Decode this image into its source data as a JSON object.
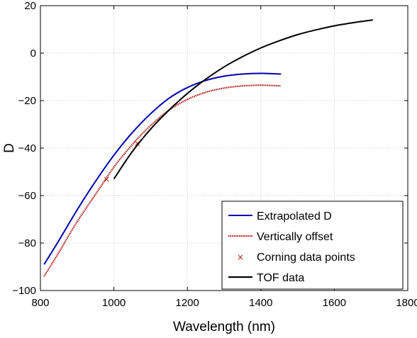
{
  "chart_data": {
    "type": "line",
    "title": "",
    "xlabel": "Wavelength (nm)",
    "ylabel": "D",
    "xlim": [
      800,
      1800
    ],
    "ylim": [
      -100,
      20
    ],
    "xticks": [
      800,
      1000,
      1200,
      1400,
      1600,
      1800
    ],
    "yticks": [
      -100,
      -80,
      -60,
      -40,
      -20,
      0,
      20
    ],
    "xtick_labels": [
      "800",
      "1000",
      "1200",
      "1400",
      "1600",
      "1800"
    ],
    "ytick_labels": [
      "−100",
      "−80",
      "−60",
      "−40",
      "−20",
      "0",
      "20"
    ],
    "grid": true,
    "legend_position": "bottom-right",
    "series": [
      {
        "name": "Extrapolated D",
        "style": "line",
        "color": "#0000b0",
        "x": [
          810,
          850,
          900,
          950,
          1000,
          1050,
          1100,
          1150,
          1200,
          1250,
          1300,
          1350,
          1400,
          1455
        ],
        "y": [
          -89,
          -79,
          -66,
          -54,
          -43,
          -33.5,
          -25.5,
          -19,
          -14.5,
          -11.5,
          -9.7,
          -8.8,
          -8.5,
          -8.8
        ]
      },
      {
        "name": "Vertically offset",
        "style": "dotted",
        "color": "#b01818",
        "x": [
          810,
          850,
          900,
          950,
          1000,
          1050,
          1100,
          1150,
          1200,
          1250,
          1300,
          1350,
          1400,
          1455
        ],
        "y": [
          -94,
          -84,
          -71,
          -59.5,
          -48,
          -38.5,
          -30.5,
          -24,
          -19.5,
          -16.5,
          -14.7,
          -13.8,
          -13.5,
          -13.8
        ]
      },
      {
        "name": "Corning data points",
        "style": "marker",
        "color": "#b01818",
        "x": [
          980,
          1064
        ],
        "y": [
          -53.2,
          -38
        ]
      },
      {
        "name": "TOF data",
        "style": "line",
        "color": "#000000",
        "x": [
          1000,
          1050,
          1100,
          1150,
          1200,
          1250,
          1300,
          1350,
          1400,
          1450,
          1500,
          1550,
          1600,
          1650,
          1705
        ],
        "y": [
          -53,
          -41.5,
          -32,
          -24,
          -17,
          -11,
          -5.8,
          -1.5,
          2.2,
          5.2,
          7.8,
          9.8,
          11.5,
          12.8,
          14
        ]
      }
    ]
  }
}
